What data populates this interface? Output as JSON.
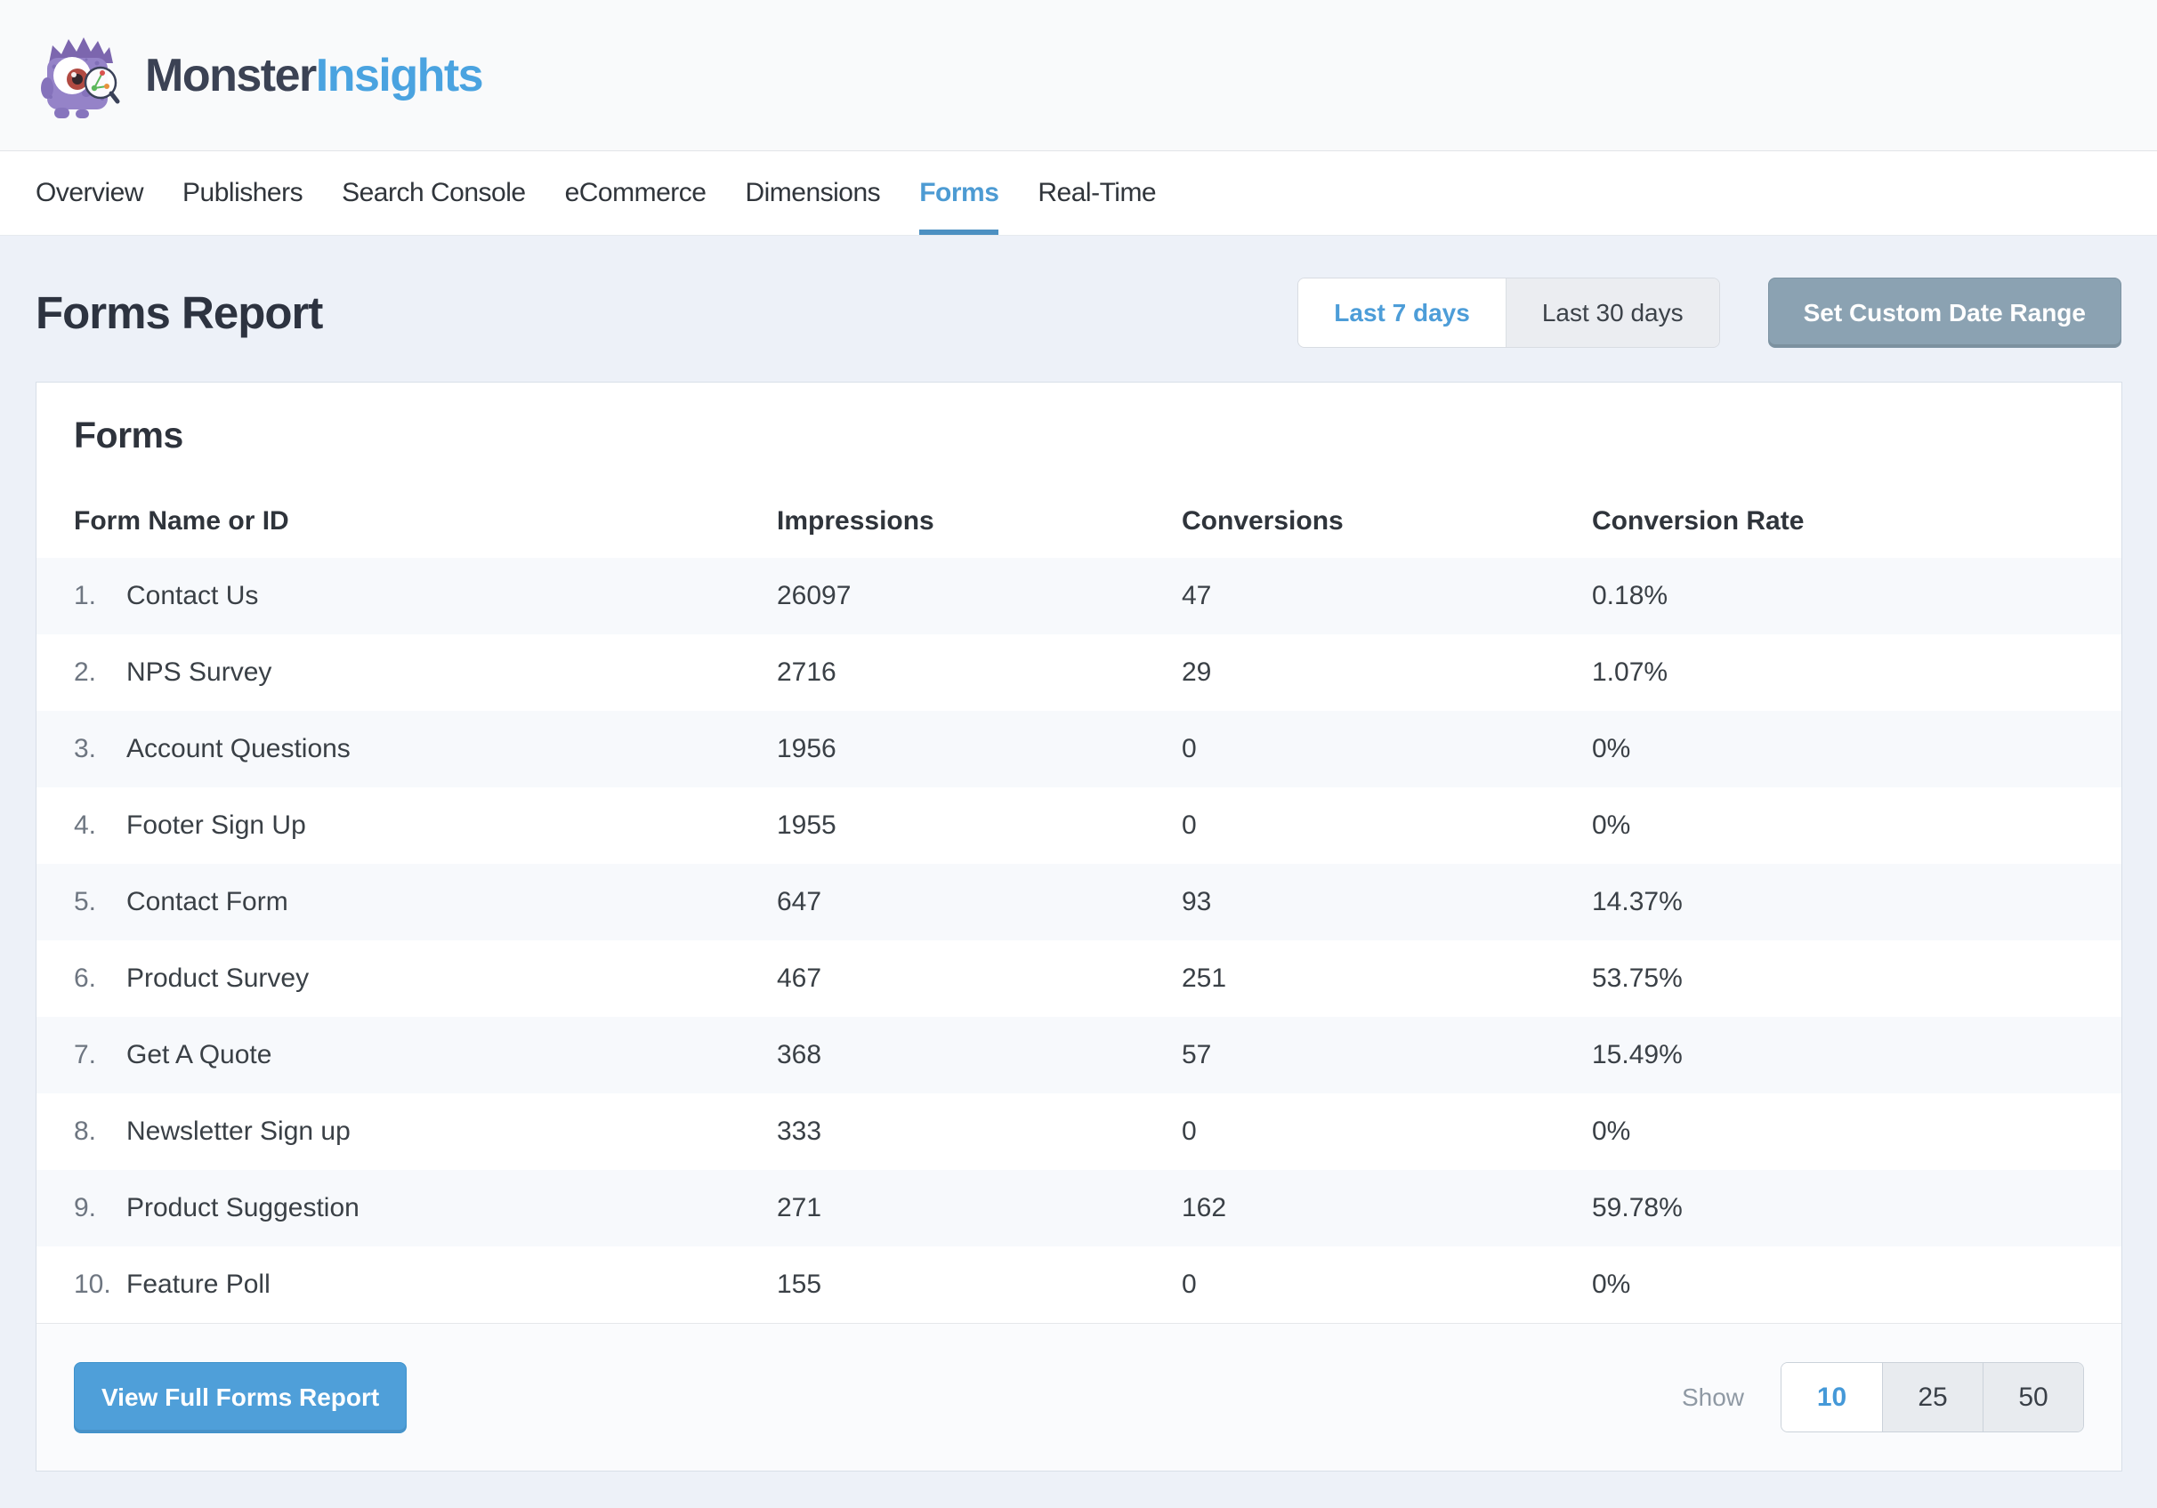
{
  "brand": {
    "logo": "monster-mascot",
    "name_dark": "Monster",
    "name_blue": "Insights"
  },
  "nav": {
    "items": [
      {
        "label": "Overview",
        "active": false
      },
      {
        "label": "Publishers",
        "active": false
      },
      {
        "label": "Search Console",
        "active": false
      },
      {
        "label": "eCommerce",
        "active": false
      },
      {
        "label": "Dimensions",
        "active": false
      },
      {
        "label": "Forms",
        "active": true
      },
      {
        "label": "Real-Time",
        "active": false
      }
    ]
  },
  "page": {
    "title": "Forms Report"
  },
  "date_range": {
    "options": [
      {
        "label": "Last 7 days",
        "active": true
      },
      {
        "label": "Last 30 days",
        "active": false
      }
    ],
    "custom_button": "Set Custom Date Range"
  },
  "report": {
    "card_title": "Forms",
    "table": {
      "columns": [
        "Form Name or ID",
        "Impressions",
        "Conversions",
        "Conversion Rate"
      ],
      "rows": [
        {
          "rank": "1.",
          "name": "Contact Us",
          "impressions": "26097",
          "conversions": "47",
          "rate": "0.18%"
        },
        {
          "rank": "2.",
          "name": "NPS Survey",
          "impressions": "2716",
          "conversions": "29",
          "rate": "1.07%"
        },
        {
          "rank": "3.",
          "name": "Account Questions",
          "impressions": "1956",
          "conversions": "0",
          "rate": "0%"
        },
        {
          "rank": "4.",
          "name": "Footer Sign Up",
          "impressions": "1955",
          "conversions": "0",
          "rate": "0%"
        },
        {
          "rank": "5.",
          "name": "Contact Form",
          "impressions": "647",
          "conversions": "93",
          "rate": "14.37%"
        },
        {
          "rank": "6.",
          "name": "Product Survey",
          "impressions": "467",
          "conversions": "251",
          "rate": "53.75%"
        },
        {
          "rank": "7.",
          "name": "Get A Quote",
          "impressions": "368",
          "conversions": "57",
          "rate": "15.49%"
        },
        {
          "rank": "8.",
          "name": "Newsletter Sign up",
          "impressions": "333",
          "conversions": "0",
          "rate": "0%"
        },
        {
          "rank": "9.",
          "name": "Product Suggestion",
          "impressions": "271",
          "conversions": "162",
          "rate": "59.78%"
        },
        {
          "rank": "10.",
          "name": "Feature Poll",
          "impressions": "155",
          "conversions": "0",
          "rate": "0%"
        }
      ]
    },
    "footer": {
      "view_full_label": "View Full Forms Report",
      "show_label": "Show",
      "page_sizes": [
        {
          "label": "10",
          "active": true
        },
        {
          "label": "25",
          "active": false
        },
        {
          "label": "50",
          "active": false
        }
      ]
    }
  },
  "colors": {
    "accent_blue": "#4d9bd3",
    "button_blue": "#4f9fd9",
    "slate_button": "#8ba2b2",
    "main_bg": "#edf1f8",
    "header_bg": "#f9fafb",
    "row_stripe": "#f7f9fc"
  }
}
